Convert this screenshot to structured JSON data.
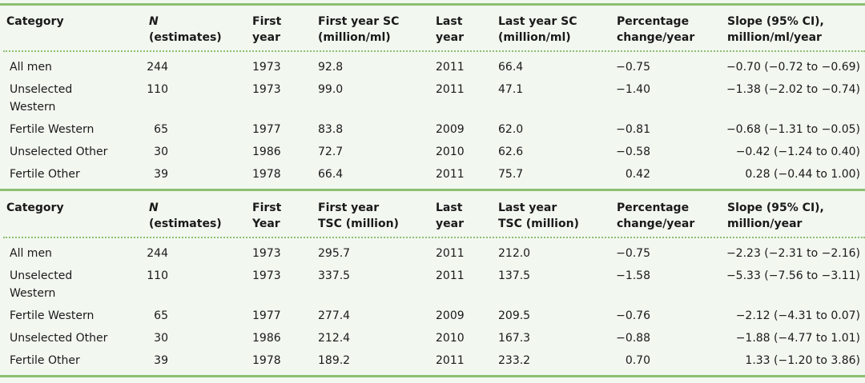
{
  "table1": {
    "headers": [
      {
        "line1": "Category",
        "line2": ""
      },
      {
        "line1": "N",
        "line2": "(estimates)"
      },
      {
        "line1": "First",
        "line2": "year"
      },
      {
        "line1": "First year SC",
        "line2": "(million/ml)"
      },
      {
        "line1": "Last",
        "line2": "year"
      },
      {
        "line1": "Last year SC",
        "line2": "(million/ml)"
      },
      {
        "line1": "Percentage",
        "line2": "change/year"
      },
      {
        "line1": "Slope (95% CI),",
        "line2": "million/ml/year"
      }
    ],
    "rows": [
      {
        "category_line1": "All men",
        "category_line2": "",
        "n": "244",
        "first_year": "1973",
        "first_value": "92.8",
        "last_year": "2011",
        "last_value": "66.4",
        "pct": "−0.75",
        "slope": "−0.70 (−0.72 to −0.69)"
      },
      {
        "category_line1": "Unselected",
        "category_line2": "Western",
        "n": "110",
        "first_year": "1973",
        "first_value": "99.0",
        "last_year": "2011",
        "last_value": "47.1",
        "pct": "−1.40",
        "slope": "−1.38 (−2.02 to −0.74)"
      },
      {
        "category_line1": "Fertile Western",
        "category_line2": "",
        "n": "65",
        "first_year": "1977",
        "first_value": "83.8",
        "last_year": "2009",
        "last_value": "62.0",
        "pct": "−0.81",
        "slope": "−0.68 (−1.31 to −0.05)"
      },
      {
        "category_line1": "Unselected Other",
        "category_line2": "",
        "n": "30",
        "first_year": "1986",
        "first_value": "72.7",
        "last_year": "2010",
        "last_value": "62.6",
        "pct": "−0.58",
        "slope": "−0.42 (−1.24 to 0.40)"
      },
      {
        "category_line1": "Fertile Other",
        "category_line2": "",
        "n": "39",
        "first_year": "1978",
        "first_value": "66.4",
        "last_year": "2011",
        "last_value": "75.7",
        "pct": "0.42",
        "slope": "0.28 (−0.44 to 1.00)"
      }
    ]
  },
  "table2": {
    "headers": [
      {
        "line1": "Category",
        "line2": ""
      },
      {
        "line1": "N",
        "line2": "(estimates)"
      },
      {
        "line1": "First",
        "line2": "Year"
      },
      {
        "line1": "First year",
        "line2": "TSC (million)"
      },
      {
        "line1": "Last",
        "line2": "year"
      },
      {
        "line1": "Last year",
        "line2": "TSC (million)"
      },
      {
        "line1": "Percentage",
        "line2": "change/year"
      },
      {
        "line1": "Slope (95% CI),",
        "line2": "million/year"
      }
    ],
    "rows": [
      {
        "category_line1": "All men",
        "category_line2": "",
        "n": "244",
        "first_year": "1973",
        "first_value": "295.7",
        "last_year": "2011",
        "last_value": "212.0",
        "pct": "−0.75",
        "slope": "−2.23 (−2.31 to −2.16)"
      },
      {
        "category_line1": "Unselected",
        "category_line2": "Western",
        "n": "110",
        "first_year": "1973",
        "first_value": "337.5",
        "last_year": "2011",
        "last_value": "137.5",
        "pct": "−1.58",
        "slope": "−5.33 (−7.56 to −3.11)"
      },
      {
        "category_line1": "Fertile Western",
        "category_line2": "",
        "n": "65",
        "first_year": "1977",
        "first_value": "277.4",
        "last_year": "2009",
        "last_value": "209.5",
        "pct": "−0.76",
        "slope": "−2.12 (−4.31 to 0.07)"
      },
      {
        "category_line1": "Unselected Other",
        "category_line2": "",
        "n": "30",
        "first_year": "1986",
        "first_value": "212.4",
        "last_year": "2010",
        "last_value": "167.3",
        "pct": "−0.88",
        "slope": "−1.88 (−4.77 to 1.01)"
      },
      {
        "category_line1": "Fertile Other",
        "category_line2": "",
        "n": "39",
        "first_year": "1978",
        "first_value": "189.2",
        "last_year": "2011",
        "last_value": "233.2",
        "pct": "0.70",
        "slope": "1.33 (−1.20 to 3.86)"
      }
    ]
  },
  "colors": {
    "background": "#f2f7f0",
    "rule": "#8cbf6f",
    "text": "#1a1a1a"
  }
}
